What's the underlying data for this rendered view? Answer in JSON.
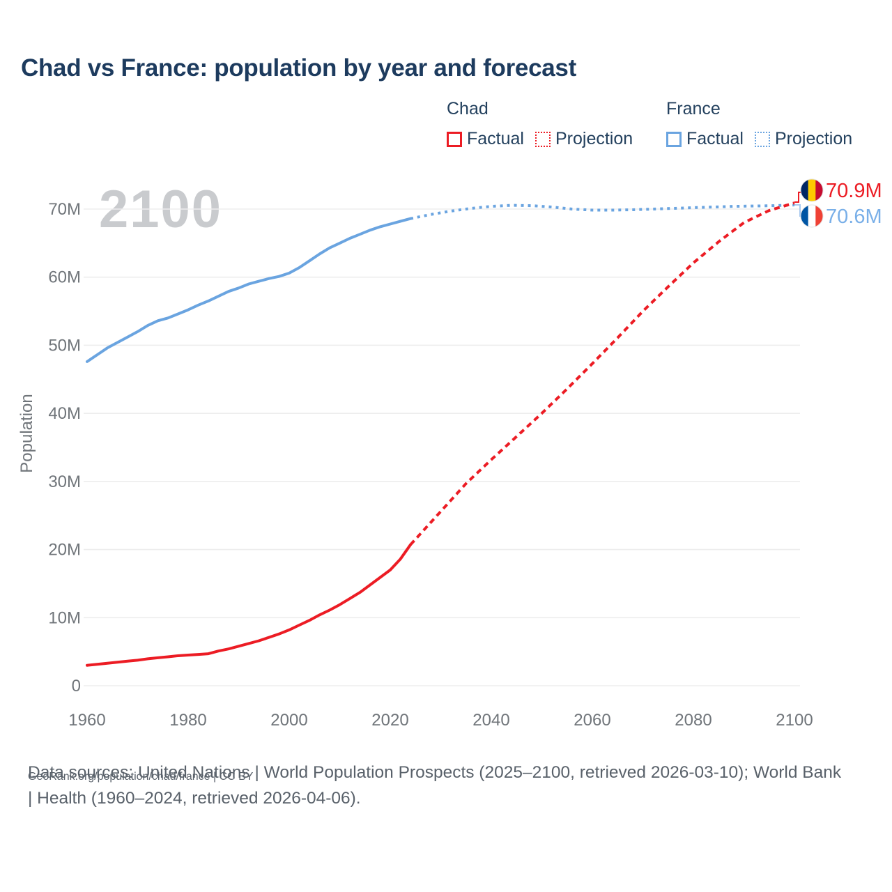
{
  "page": {
    "title": "Chad vs France: population by year and forecast"
  },
  "legend": {
    "groups": [
      {
        "name": "Chad",
        "color": "#ec1c24",
        "items": [
          {
            "label": "Factual",
            "style": "solid"
          },
          {
            "label": "Projection",
            "style": "dotted"
          }
        ]
      },
      {
        "name": "France",
        "color": "#6aa4e0",
        "items": [
          {
            "label": "Factual",
            "style": "solid"
          },
          {
            "label": "Projection",
            "style": "dotted"
          }
        ]
      }
    ]
  },
  "footer": {
    "sources": "Data sources: United Nations | World Population Prospects (2025–2100, retrieved 2026-03-10); World Bank | Health (1960–2024, retrieved 2026-04-06).",
    "attribution": "GeoRank.org/population/chad/france | CC BY"
  },
  "chart_data": {
    "type": "line",
    "title": "Chad vs France: population by year and forecast",
    "watermark": "2100",
    "xlabel": "",
    "ylabel": "Population",
    "unit": "millions of people",
    "xlim": [
      1960,
      2100
    ],
    "ylim": [
      0,
      70
    ],
    "grid": "horizontal",
    "x_ticks": [
      1960,
      1980,
      2000,
      2020,
      2040,
      2060,
      2080,
      2100
    ],
    "y_ticks": [
      {
        "value": 0,
        "label": "0"
      },
      {
        "value": 10,
        "label": "10M"
      },
      {
        "value": 20,
        "label": "20M"
      },
      {
        "value": 30,
        "label": "30M"
      },
      {
        "value": 40,
        "label": "40M"
      },
      {
        "value": 50,
        "label": "50M"
      },
      {
        "value": 60,
        "label": "60M"
      },
      {
        "value": 70,
        "label": "70M"
      }
    ],
    "series": [
      {
        "name": "France Factual",
        "color": "#6aa4e0",
        "style": "solid",
        "dash": "",
        "points": [
          [
            1960,
            47.6
          ],
          [
            1962,
            48.6
          ],
          [
            1964,
            49.6
          ],
          [
            1966,
            50.4
          ],
          [
            1968,
            51.2
          ],
          [
            1970,
            52.0
          ],
          [
            1972,
            52.9
          ],
          [
            1974,
            53.6
          ],
          [
            1976,
            54.0
          ],
          [
            1978,
            54.6
          ],
          [
            1980,
            55.2
          ],
          [
            1982,
            55.9
          ],
          [
            1984,
            56.5
          ],
          [
            1986,
            57.2
          ],
          [
            1988,
            57.9
          ],
          [
            1990,
            58.4
          ],
          [
            1992,
            59.0
          ],
          [
            1994,
            59.4
          ],
          [
            1996,
            59.8
          ],
          [
            1998,
            60.1
          ],
          [
            2000,
            60.6
          ],
          [
            2002,
            61.4
          ],
          [
            2004,
            62.4
          ],
          [
            2006,
            63.4
          ],
          [
            2008,
            64.3
          ],
          [
            2010,
            65.0
          ],
          [
            2012,
            65.7
          ],
          [
            2014,
            66.3
          ],
          [
            2016,
            66.9
          ],
          [
            2018,
            67.4
          ],
          [
            2020,
            67.8
          ],
          [
            2022,
            68.2
          ],
          [
            2024,
            68.6
          ]
        ]
      },
      {
        "name": "France Projection",
        "color": "#6aa4e0",
        "style": "dashed",
        "dash": "4 6",
        "points": [
          [
            2024,
            68.6
          ],
          [
            2028,
            69.2
          ],
          [
            2032,
            69.7
          ],
          [
            2036,
            70.1
          ],
          [
            2040,
            70.4
          ],
          [
            2044,
            70.55
          ],
          [
            2048,
            70.5
          ],
          [
            2052,
            70.3
          ],
          [
            2056,
            70.0
          ],
          [
            2060,
            69.85
          ],
          [
            2064,
            69.85
          ],
          [
            2068,
            69.9
          ],
          [
            2072,
            70.0
          ],
          [
            2076,
            70.1
          ],
          [
            2080,
            70.2
          ],
          [
            2084,
            70.3
          ],
          [
            2088,
            70.4
          ],
          [
            2092,
            70.45
          ],
          [
            2096,
            70.5
          ],
          [
            2100,
            70.6
          ]
        ]
      },
      {
        "name": "Chad Factual",
        "color": "#ec1c24",
        "style": "solid",
        "dash": "",
        "points": [
          [
            1960,
            3.0
          ],
          [
            1962,
            3.15
          ],
          [
            1964,
            3.3
          ],
          [
            1966,
            3.45
          ],
          [
            1968,
            3.6
          ],
          [
            1970,
            3.75
          ],
          [
            1972,
            3.95
          ],
          [
            1974,
            4.1
          ],
          [
            1976,
            4.25
          ],
          [
            1978,
            4.4
          ],
          [
            1980,
            4.5
          ],
          [
            1982,
            4.6
          ],
          [
            1984,
            4.7
          ],
          [
            1986,
            5.1
          ],
          [
            1988,
            5.4
          ],
          [
            1990,
            5.8
          ],
          [
            1992,
            6.2
          ],
          [
            1994,
            6.6
          ],
          [
            1996,
            7.1
          ],
          [
            1998,
            7.6
          ],
          [
            2000,
            8.2
          ],
          [
            2002,
            8.9
          ],
          [
            2004,
            9.6
          ],
          [
            2006,
            10.4
          ],
          [
            2008,
            11.1
          ],
          [
            2010,
            11.9
          ],
          [
            2012,
            12.8
          ],
          [
            2014,
            13.7
          ],
          [
            2016,
            14.8
          ],
          [
            2018,
            15.9
          ],
          [
            2020,
            17.0
          ],
          [
            2022,
            18.6
          ],
          [
            2024,
            20.7
          ]
        ]
      },
      {
        "name": "Chad Projection",
        "color": "#ec1c24",
        "style": "dashed",
        "dash": "8 6",
        "points": [
          [
            2024,
            20.7
          ],
          [
            2030,
            25.6
          ],
          [
            2035,
            29.7
          ],
          [
            2040,
            33.2
          ],
          [
            2045,
            36.6
          ],
          [
            2050,
            40.0
          ],
          [
            2055,
            43.6
          ],
          [
            2060,
            47.3
          ],
          [
            2065,
            51.1
          ],
          [
            2070,
            55.0
          ],
          [
            2075,
            58.6
          ],
          [
            2080,
            62.1
          ],
          [
            2085,
            65.2
          ],
          [
            2090,
            68.0
          ],
          [
            2095,
            69.8
          ],
          [
            2100,
            70.9
          ]
        ]
      }
    ],
    "end_labels": [
      {
        "series": "Chad",
        "text": "70.9M",
        "value": 70.9,
        "color": "#ec1c24",
        "flag_icon": "chad-flag-icon",
        "flag_colors": [
          "#002664",
          "#FECB00",
          "#C60C30"
        ]
      },
      {
        "series": "France",
        "text": "70.6M",
        "value": 70.6,
        "color": "#79afe8",
        "flag_icon": "france-flag-icon",
        "flag_colors": [
          "#0055A4",
          "#FFFFFF",
          "#EF4135"
        ]
      }
    ]
  }
}
